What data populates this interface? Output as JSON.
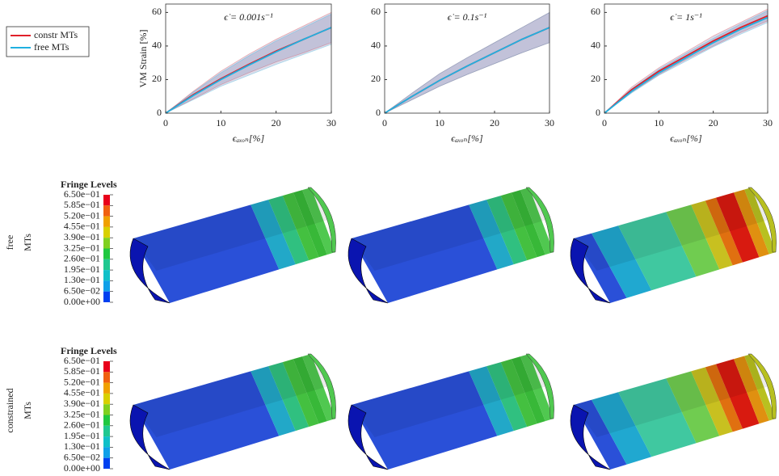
{
  "chart_data": [
    {
      "type": "line",
      "title": "ϵ̇ = 0.001s⁻¹",
      "ylabel": "VM Strain [%]",
      "xlabel": "ϵₐₓₒₙ[%]",
      "x": [
        0,
        5,
        10,
        15,
        20,
        25,
        30
      ],
      "xlim": [
        0,
        30
      ],
      "xticks": [
        0,
        10,
        20,
        30
      ],
      "ylim": [
        0,
        65
      ],
      "yticks": [
        0,
        20,
        40,
        60
      ],
      "grid": false,
      "legend": "outside-left",
      "series": [
        {
          "name": "constr MTs",
          "color": "#e0202a",
          "values": [
            0,
            11,
            20.5,
            29,
            37,
            44,
            51
          ],
          "lower": [
            0,
            8.5,
            17,
            24,
            30.5,
            36,
            42
          ],
          "upper": [
            0,
            13,
            25,
            35,
            44,
            52,
            60
          ]
        },
        {
          "name": "free MTs",
          "color": "#20b0e0",
          "values": [
            0,
            10.5,
            20,
            28.5,
            36.5,
            44,
            51
          ],
          "lower": [
            0,
            8,
            16,
            22.5,
            29,
            35,
            41
          ],
          "upper": [
            0,
            12.5,
            24,
            34,
            43,
            51,
            59
          ]
        }
      ]
    },
    {
      "type": "line",
      "title": "ϵ̇ = 0.1s⁻¹",
      "xlabel": "ϵₐₓₒₙ[%]",
      "x": [
        0,
        5,
        10,
        15,
        20,
        25,
        30
      ],
      "xlim": [
        0,
        30
      ],
      "xticks": [
        0,
        10,
        20,
        30
      ],
      "ylim": [
        0,
        65
      ],
      "yticks": [
        0,
        20,
        40,
        60
      ],
      "grid": false,
      "series": [
        {
          "color": "#e0202a",
          "values": [
            0,
            10,
            19.5,
            28,
            36,
            44,
            51
          ],
          "lower": [
            0,
            8,
            16,
            23,
            29.5,
            36,
            42
          ],
          "upper": [
            0,
            12,
            23.5,
            33,
            42,
            51,
            60
          ]
        },
        {
          "color": "#20b0e0",
          "values": [
            0,
            10,
            19.5,
            28,
            36,
            44,
            51
          ],
          "lower": [
            0,
            8,
            16,
            23,
            29.5,
            36,
            42
          ],
          "upper": [
            0,
            12,
            23.5,
            33,
            42,
            51,
            60
          ]
        }
      ]
    },
    {
      "type": "line",
      "title": "ϵ̇ = 1s⁻¹",
      "xlabel": "ϵₐₓₒₙ[%]",
      "x": [
        0,
        5,
        10,
        15,
        20,
        25,
        30
      ],
      "xlim": [
        0,
        30
      ],
      "xticks": [
        0,
        10,
        20,
        30
      ],
      "ylim": [
        0,
        65
      ],
      "yticks": [
        0,
        20,
        40,
        60
      ],
      "grid": false,
      "series": [
        {
          "color": "#e0202a",
          "values": [
            0,
            14,
            25,
            34,
            43,
            51,
            58
          ],
          "lower": [
            0,
            12.5,
            23,
            32,
            40,
            48,
            55
          ],
          "upper": [
            0,
            15.5,
            27,
            36.5,
            46,
            54,
            62
          ]
        },
        {
          "color": "#20b0e0",
          "values": [
            0,
            13,
            24,
            33,
            42,
            50,
            57
          ],
          "lower": [
            0,
            12,
            22.5,
            31,
            39.5,
            47,
            54
          ],
          "upper": [
            0,
            14.5,
            26,
            35.5,
            44.5,
            53,
            61
          ]
        }
      ]
    }
  ],
  "row_labels": [
    [
      "free",
      "MTs"
    ],
    [
      "constrained",
      "MTs"
    ]
  ],
  "fringe": {
    "title": "Fringe Levels",
    "levels": [
      "6.50e−01",
      "5.85e−01",
      "5.20e−01",
      "4.55e−01",
      "3.90e−01",
      "3.25e−01",
      "2.60e−01",
      "1.95e−01",
      "1.30e−01",
      "6.50e−02",
      "0.00e+00"
    ]
  }
}
